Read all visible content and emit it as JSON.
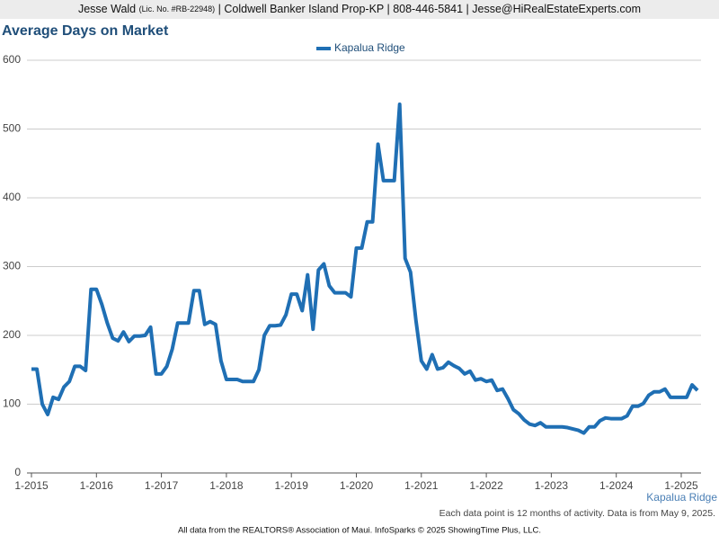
{
  "header": {
    "name": "Jesse Wald",
    "license": "(Lic. No. #RB-22948)",
    "details": "| Coldwell Banker Island Prop-KP | 808-446-5841 | Jesse@HiRealEstateExperts.com"
  },
  "chart_data": {
    "type": "line",
    "title": "Average Days on Market",
    "categories": [
      "1-2015",
      null,
      null,
      null,
      null,
      null,
      null,
      null,
      null,
      null,
      null,
      null,
      "1-2016",
      null,
      null,
      null,
      null,
      null,
      null,
      null,
      null,
      null,
      null,
      null,
      "1-2017",
      null,
      null,
      null,
      null,
      null,
      null,
      null,
      null,
      null,
      null,
      null,
      "1-2018",
      null,
      null,
      null,
      null,
      null,
      null,
      null,
      null,
      null,
      null,
      null,
      "1-2019",
      null,
      null,
      null,
      null,
      null,
      null,
      null,
      null,
      null,
      null,
      null,
      "1-2020",
      null,
      null,
      null,
      null,
      null,
      null,
      null,
      null,
      null,
      null,
      null,
      "1-2021",
      null,
      null,
      null,
      null,
      null,
      null,
      null,
      null,
      null,
      null,
      null,
      "1-2022",
      null,
      null,
      null,
      null,
      null,
      null,
      null,
      null,
      null,
      null,
      null,
      "1-2023",
      null,
      null,
      null,
      null,
      null,
      null,
      null,
      null,
      null,
      null,
      null,
      "1-2024",
      null,
      null,
      null,
      null,
      null,
      null,
      null,
      null,
      null,
      null,
      null,
      "1-2025",
      null,
      null,
      null
    ],
    "series": [
      {
        "name": "Kapalua Ridge",
        "color": "#1f6fb4",
        "values": [
          151,
          151,
          100,
          85,
          110,
          107,
          125,
          133,
          155,
          155,
          149,
          267,
          267,
          245,
          218,
          196,
          192,
          205,
          191,
          199,
          199,
          200,
          212,
          144,
          144,
          155,
          180,
          218,
          218,
          218,
          265,
          265,
          216,
          220,
          216,
          163,
          136,
          136,
          136,
          133,
          133,
          133,
          150,
          200,
          214,
          214,
          215,
          230,
          260,
          260,
          236,
          288,
          209,
          295,
          304,
          272,
          262,
          262,
          262,
          256,
          327,
          327,
          365,
          365,
          478,
          425,
          425,
          425,
          536,
          312,
          292,
          222,
          163,
          151,
          172,
          151,
          153,
          161,
          156,
          152,
          144,
          148,
          135,
          137,
          133,
          135,
          120,
          122,
          108,
          92,
          86,
          77,
          71,
          69,
          73,
          67,
          67,
          67,
          67,
          66,
          64,
          62,
          58,
          67,
          67,
          76,
          80,
          79,
          79,
          79,
          83,
          97,
          97,
          101,
          113,
          118,
          118,
          122,
          110,
          110,
          110,
          110,
          128,
          120
        ]
      }
    ],
    "ylim": [
      0,
      600
    ],
    "yticks": [
      0,
      100,
      200,
      300,
      400,
      500,
      600
    ],
    "grid": true,
    "legend": "top"
  },
  "notes": {
    "data_note": "Each data point is 12 months of activity. Data is from May 9, 2025.",
    "footer": "All data from the REALTORS® Association of Maui. InfoSparks © 2025 ShowingTime Plus, LLC."
  }
}
